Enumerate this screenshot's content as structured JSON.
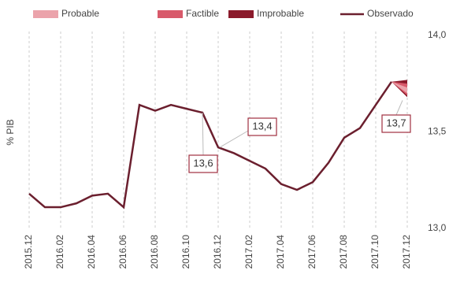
{
  "chart_data": {
    "type": "line",
    "y_label": "% PIB",
    "categories": [
      "2015.12",
      null,
      "2016.02",
      null,
      "2016.04",
      null,
      "2016.06",
      null,
      "2016.08",
      null,
      "2016.10",
      null,
      "2016.12",
      null,
      "2017.02",
      null,
      "2017.04",
      null,
      "2017.06",
      null,
      "2017.08",
      null,
      "2017.10",
      null,
      "2017.12"
    ],
    "series": [
      {
        "name": "Observado",
        "color": "#6b1f2e",
        "values": [
          13.18,
          13.11,
          13.11,
          13.13,
          13.17,
          13.18,
          13.11,
          13.64,
          13.61,
          13.64,
          13.62,
          13.6,
          13.42,
          13.39,
          13.35,
          13.31,
          13.23,
          13.2,
          13.24,
          13.34,
          13.47,
          13.52,
          13.64,
          13.76,
          null
        ]
      }
    ],
    "fan": [
      {
        "name": "Probable",
        "color": "#eba3ab",
        "low": 13.7,
        "high": 13.73
      },
      {
        "name": "Factible",
        "color": "#d85a6b",
        "low": 13.69,
        "high": 13.75
      },
      {
        "name": "Improbable",
        "color": "#8b1a2b",
        "low": 13.68,
        "high": 13.77
      }
    ],
    "annotations": [
      "13,6",
      "13,4",
      "13,7"
    ],
    "ylim": [
      13,
      14
    ],
    "yticks": [
      {
        "value": 13,
        "label": "13,0"
      },
      {
        "value": 13.5,
        "label": "13,5"
      },
      {
        "value": 14,
        "label": "14,0"
      }
    ],
    "grid": true
  }
}
